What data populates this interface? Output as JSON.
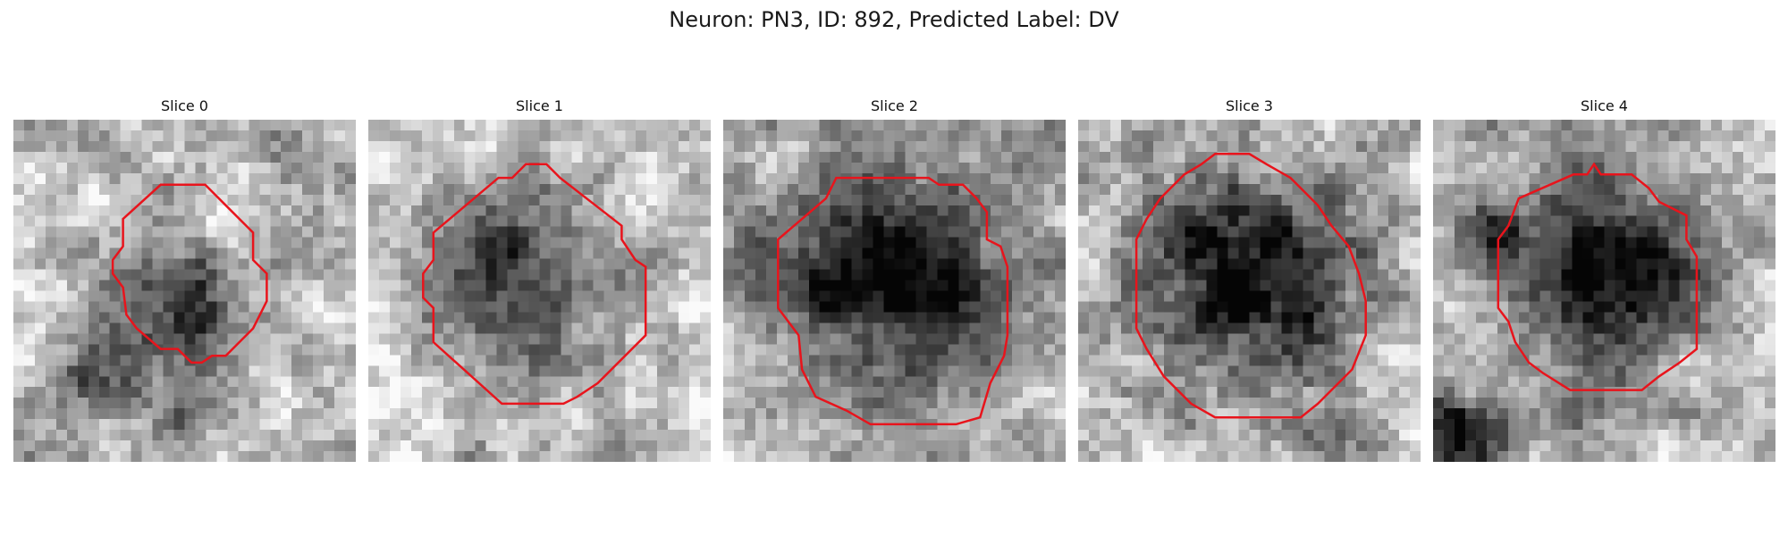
{
  "figure": {
    "title": "Neuron: PN3, ID: 892, Predicted Label: DV"
  },
  "panels": [
    {
      "title": "Slice 0"
    },
    {
      "title": "Slice 1"
    },
    {
      "title": "Slice 2"
    },
    {
      "title": "Slice 3"
    },
    {
      "title": "Slice 4"
    }
  ],
  "colors": {
    "contour": "#e8141c",
    "background": "#ffffff"
  }
}
